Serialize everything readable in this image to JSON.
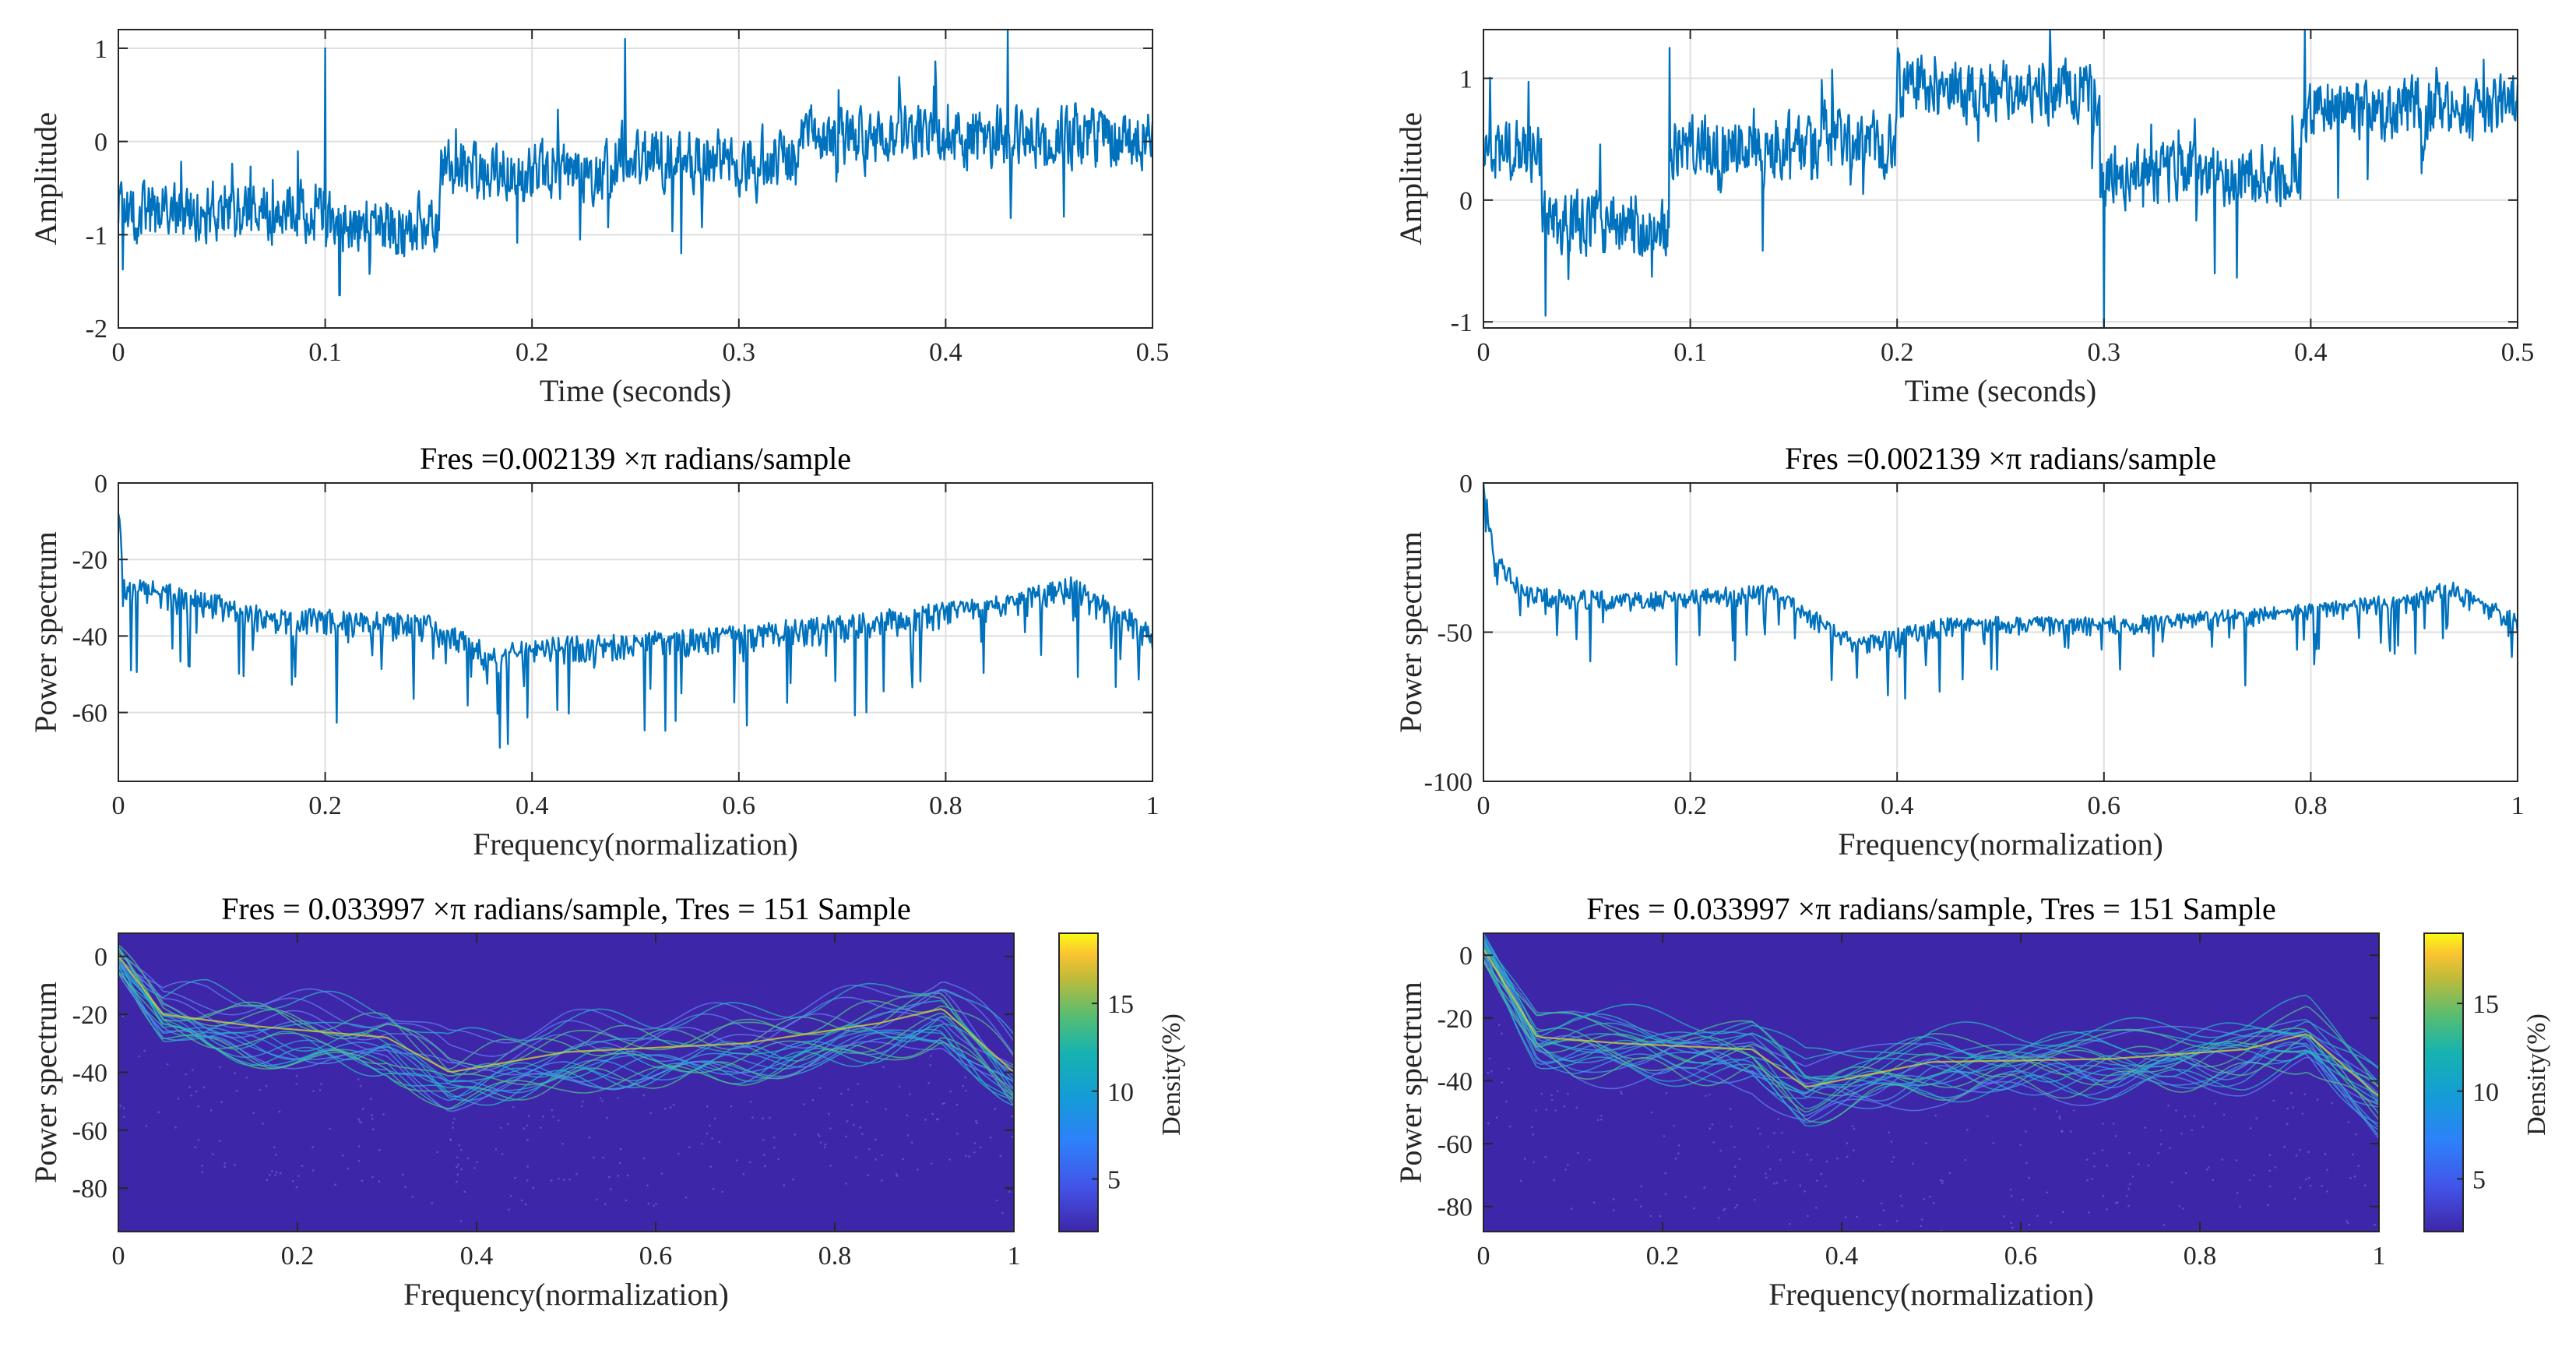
{
  "colors": {
    "line": "#0072bd",
    "spectrum_bg": "#3e26a8",
    "grid": "#dfdfdf",
    "axis": "#262626"
  },
  "colormap_name": "parula",
  "chart_data": [
    {
      "id": "left_time",
      "type": "line",
      "title": "",
      "xlabel": "Time (seconds)",
      "ylabel": "Amplitude",
      "xlim": [
        0,
        0.5
      ],
      "ylim": [
        -2,
        1.2
      ],
      "xticks": [
        0,
        0.1,
        0.2,
        0.3,
        0.4,
        0.5
      ],
      "xtick_labels": [
        "0",
        "0.1",
        "0.2",
        "0.3",
        "0.4",
        "0.5"
      ],
      "yticks": [
        -2,
        -1,
        0,
        1
      ],
      "ytick_labels": [
        "-2",
        "-1",
        "0",
        "1"
      ],
      "segments": [
        {
          "x": [
            0,
            0.1
          ],
          "mean": -0.75
        },
        {
          "x": [
            0.1,
            0.155
          ],
          "mean": -0.9
        },
        {
          "x": [
            0.155,
            0.24
          ],
          "mean": -0.3
        },
        {
          "x": [
            0.24,
            0.33
          ],
          "mean": -0.2
        },
        {
          "x": [
            0.33,
            0.5
          ],
          "mean": 0.05
        }
      ],
      "noise_amplitude": 0.28,
      "spikes": [
        {
          "x": 0.1,
          "y": 1.0
        },
        {
          "x": 0.107,
          "y": -1.65
        },
        {
          "x": 0.43,
          "y": 1.2
        },
        {
          "x": 0.272,
          "y": -1.2
        },
        {
          "x": 0.245,
          "y": 1.1
        }
      ]
    },
    {
      "id": "right_time",
      "type": "line",
      "title": "",
      "xlabel": "Time (seconds)",
      "ylabel": "Amplitude",
      "xlim": [
        0,
        0.5
      ],
      "ylim": [
        -1.05,
        1.4
      ],
      "xticks": [
        0,
        0.1,
        0.2,
        0.3,
        0.4,
        0.5
      ],
      "xtick_labels": [
        "0",
        "0.1",
        "0.2",
        "0.3",
        "0.4",
        "0.5"
      ],
      "yticks": [
        -1,
        0,
        1
      ],
      "ytick_labels": [
        "-1",
        "0",
        "1"
      ],
      "segments": [
        {
          "x": [
            0,
            0.028
          ],
          "mean": 0.4
        },
        {
          "x": [
            0.028,
            0.09
          ],
          "mean": -0.2
        },
        {
          "x": [
            0.09,
            0.2
          ],
          "mean": 0.45
        },
        {
          "x": [
            0.2,
            0.298
          ],
          "mean": 0.9
        },
        {
          "x": [
            0.298,
            0.395
          ],
          "mean": 0.2
        },
        {
          "x": [
            0.395,
            0.5
          ],
          "mean": 0.75
        }
      ],
      "noise_amplitude": 0.22,
      "spikes": [
        {
          "x": 0.09,
          "y": 1.25
        },
        {
          "x": 0.3,
          "y": -1.05
        },
        {
          "x": 0.397,
          "y": 1.4
        },
        {
          "x": 0.03,
          "y": -0.95
        }
      ]
    },
    {
      "id": "left_psd",
      "type": "line",
      "title": "Fres =0.002139    ×π radians/sample",
      "xlabel": "Frequency(normalization)",
      "ylabel": "Power spectrum",
      "xlim": [
        0,
        1
      ],
      "ylim": [
        -78,
        0
      ],
      "xticks": [
        0,
        0.2,
        0.4,
        0.6,
        0.8,
        1
      ],
      "xtick_labels": [
        "0",
        "0.2",
        "0.4",
        "0.6",
        "0.8",
        "1"
      ],
      "yticks": [
        -60,
        -40,
        -20,
        0
      ],
      "ytick_labels": [
        "-60",
        "-40",
        "-20",
        "0"
      ],
      "envelope_x": [
        0,
        0.005,
        0.05,
        0.15,
        0.3,
        0.36,
        0.45,
        0.55,
        0.7,
        0.85,
        0.92,
        1.0
      ],
      "envelope_y": [
        -8,
        -28,
        -30,
        -36,
        -38,
        -46,
        -43,
        -42,
        -38,
        -33,
        -28,
        -40
      ],
      "noise_depth": 16
    },
    {
      "id": "right_psd",
      "type": "line",
      "title": "Fres =0.002139    ×π radians/sample",
      "xlabel": "Frequency(normalization)",
      "ylabel": "Power spectrum",
      "xlim": [
        0,
        1
      ],
      "ylim": [
        -100,
        0
      ],
      "xticks": [
        0,
        0.2,
        0.4,
        0.6,
        0.8,
        1
      ],
      "xtick_labels": [
        "0",
        "0.2",
        "0.4",
        "0.6",
        "0.8",
        "1"
      ],
      "yticks": [
        -100,
        -50,
        0
      ],
      "ytick_labels": [
        "-100",
        "-50",
        "0"
      ],
      "envelope_x": [
        0,
        0.01,
        0.04,
        0.15,
        0.28,
        0.36,
        0.45,
        0.6,
        0.75,
        0.9,
        0.93,
        1.0
      ],
      "envelope_y": [
        0,
        -25,
        -38,
        -40,
        -37,
        -55,
        -48,
        -48,
        -45,
        -40,
        -35,
        -47
      ],
      "noise_depth": 14
    },
    {
      "id": "left_spectrum",
      "type": "heatmap",
      "title": "Fres = 0.033997    ×π radians/sample, Tres = 151 Sample",
      "xlabel": "Frequency(normalization)",
      "ylabel": "Power spectrum",
      "xlim": [
        0,
        1
      ],
      "ylim": [
        -95,
        8
      ],
      "xticks": [
        0,
        0.2,
        0.4,
        0.6,
        0.8,
        1
      ],
      "xtick_labels": [
        "0",
        "0.2",
        "0.4",
        "0.6",
        "0.8",
        "1"
      ],
      "yticks": [
        -80,
        -60,
        -40,
        -20,
        0
      ],
      "ytick_labels": [
        "-80",
        "-60",
        "-40",
        "-20",
        "0"
      ],
      "colorbar_label": "Density(%)",
      "clim": [
        2,
        19
      ],
      "colorbar_ticks": [
        5,
        10,
        15
      ],
      "colorbar_tick_labels": [
        "5",
        "10",
        "15"
      ],
      "envelope_x": [
        0,
        0.05,
        0.15,
        0.3,
        0.37,
        0.5,
        0.7,
        0.85,
        0.92,
        1.0
      ],
      "envelope_y": [
        0,
        -20,
        -24,
        -28,
        -40,
        -33,
        -30,
        -23,
        -18,
        -40
      ],
      "trace_count": 22
    },
    {
      "id": "right_spectrum",
      "type": "heatmap",
      "title": "Fres = 0.033997    ×π radians/sample, Tres = 151 Sample",
      "xlabel": "Frequency(normalization)",
      "ylabel": "Power spectrum",
      "xlim": [
        0,
        1
      ],
      "ylim": [
        -88,
        7
      ],
      "xticks": [
        0,
        0.2,
        0.4,
        0.6,
        0.8,
        1
      ],
      "xtick_labels": [
        "0",
        "0.2",
        "0.4",
        "0.6",
        "0.8",
        "1"
      ],
      "yticks": [
        -80,
        -60,
        -40,
        -20,
        0
      ],
      "ytick_labels": [
        "-80",
        "-60",
        "-40",
        "-20",
        "0"
      ],
      "colorbar_label": "Density(%)",
      "clim": [
        2,
        19
      ],
      "colorbar_ticks": [
        5,
        10,
        15
      ],
      "colorbar_tick_labels": [
        "5",
        "10",
        "15"
      ],
      "envelope_x": [
        0,
        0.06,
        0.15,
        0.3,
        0.36,
        0.5,
        0.7,
        0.85,
        0.92,
        1.0
      ],
      "envelope_y": [
        2,
        -26,
        -28,
        -30,
        -42,
        -34,
        -33,
        -30,
        -25,
        -45
      ],
      "trace_count": 22
    }
  ]
}
